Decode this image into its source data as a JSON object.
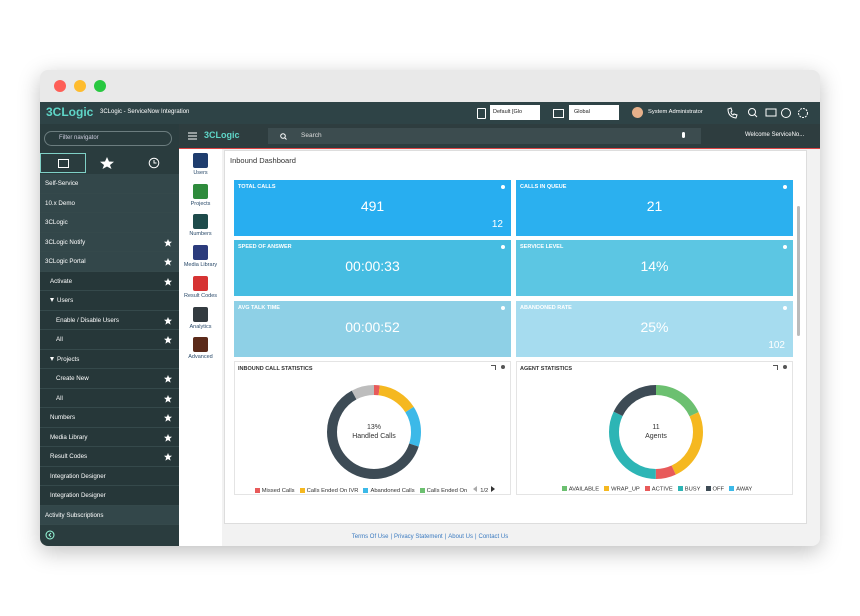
{
  "header": {
    "brand": "3CLogic",
    "app_title": "3CLogic - ServiceNow Integration",
    "scope": "Default [Glo",
    "domain": "Global",
    "user": "System Administrator"
  },
  "navigator": {
    "filter_placeholder": "Filter navigator",
    "items": [
      {
        "label": "Self-Service",
        "level": 0,
        "star": false
      },
      {
        "label": "10.x Demo",
        "level": 0,
        "star": false
      },
      {
        "label": "3CLogic",
        "level": 0,
        "star": false
      },
      {
        "label": "3CLogic Notify",
        "level": 0,
        "star": true
      },
      {
        "label": "3CLogic Portal",
        "level": 0,
        "star": true
      },
      {
        "label": "Activate",
        "level": 1,
        "star": true
      },
      {
        "label": "Users",
        "level": 1,
        "star": false,
        "expanded": true
      },
      {
        "label": "Enable / Disable Users",
        "level": 2,
        "star": true
      },
      {
        "label": "All",
        "level": 2,
        "star": true
      },
      {
        "label": "Projects",
        "level": 1,
        "star": false,
        "expanded": true
      },
      {
        "label": "Create New",
        "level": 2,
        "star": true
      },
      {
        "label": "All",
        "level": 2,
        "star": true
      },
      {
        "label": "Numbers",
        "level": 1,
        "star": true
      },
      {
        "label": "Media Library",
        "level": 1,
        "star": true
      },
      {
        "label": "Result Codes",
        "level": 1,
        "star": true
      },
      {
        "label": "Integration Designer",
        "level": 1,
        "star": false
      },
      {
        "label": "Integration Designer",
        "level": 1,
        "star": false
      },
      {
        "label": "Activity Subscriptions",
        "level": 0,
        "star": false
      }
    ]
  },
  "toolbar": {
    "brand": "3CLogic",
    "search": "Search",
    "welcome": "Welcome ServiceNo..."
  },
  "apps": [
    {
      "label": "Users",
      "color": "#1f3d6e"
    },
    {
      "label": "Projects",
      "color": "#2e8b3c"
    },
    {
      "label": "Numbers",
      "color": "#1e4b4b"
    },
    {
      "label": "Media Library",
      "color": "#2b3b7c"
    },
    {
      "label": "Result Codes",
      "color": "#d63333"
    },
    {
      "label": "Analytics",
      "color": "#333b40"
    },
    {
      "label": "Advanced",
      "color": "#5b2a1a"
    }
  ],
  "dashboard": {
    "title": "Inbound Dashboard",
    "tiles": [
      {
        "label": "TOTAL CALLS",
        "value": 491,
        "sub": 12
      },
      {
        "label": "CALLS IN QUEUE",
        "value": 21
      },
      {
        "label": "SPEED OF ANSWER",
        "value": "00:00:33"
      },
      {
        "label": "SERVICE LEVEL",
        "value": "14%"
      },
      {
        "label": "AVG TALK TIME",
        "value": "00:00:52"
      },
      {
        "label": "ABANDONED RATE",
        "value": "25%",
        "sub": 102
      }
    ],
    "charts": [
      {
        "type": "donut",
        "title": "INBOUND CALL STATISTICS",
        "center_value": "13%",
        "center_label": "Handled Calls",
        "page": "1/2",
        "series": [
          {
            "name": "Missed Calls",
            "color": "#e85a5a",
            "value": 2
          },
          {
            "name": "Calls Ended On IVR",
            "color": "#f5b820",
            "value": 14
          },
          {
            "name": "Abandoned Calls",
            "color": "#3cb9e8",
            "value": 14
          },
          {
            "name": "Calls Ended On",
            "color": "#6cc070",
            "value": 0
          },
          {
            "color": "#3d4b55",
            "value": 62
          },
          {
            "color": "#bdbdbd",
            "value": 8
          }
        ]
      },
      {
        "type": "donut",
        "title": "AGENT STATISTICS",
        "center_value": 11,
        "center_label": "Agents",
        "series": [
          {
            "name": "AVAILABLE",
            "color": "#6cc070",
            "value": 18
          },
          {
            "name": "WRAP_UP",
            "color": "#f5b820",
            "value": 25
          },
          {
            "name": "ACTIVE",
            "color": "#e85a5a",
            "value": 7
          },
          {
            "name": "BUSY",
            "color": "#2db5b5",
            "value": 32
          },
          {
            "name": "OFF",
            "color": "#3d4b55",
            "value": 18
          },
          {
            "name": "AWAY",
            "color": "#3cb9e8",
            "value": 0
          }
        ]
      }
    ]
  },
  "footer": {
    "links": [
      "Terms Of Use",
      "Privacy Statement",
      "About Us",
      "Contact Us"
    ],
    "separator": "|"
  }
}
